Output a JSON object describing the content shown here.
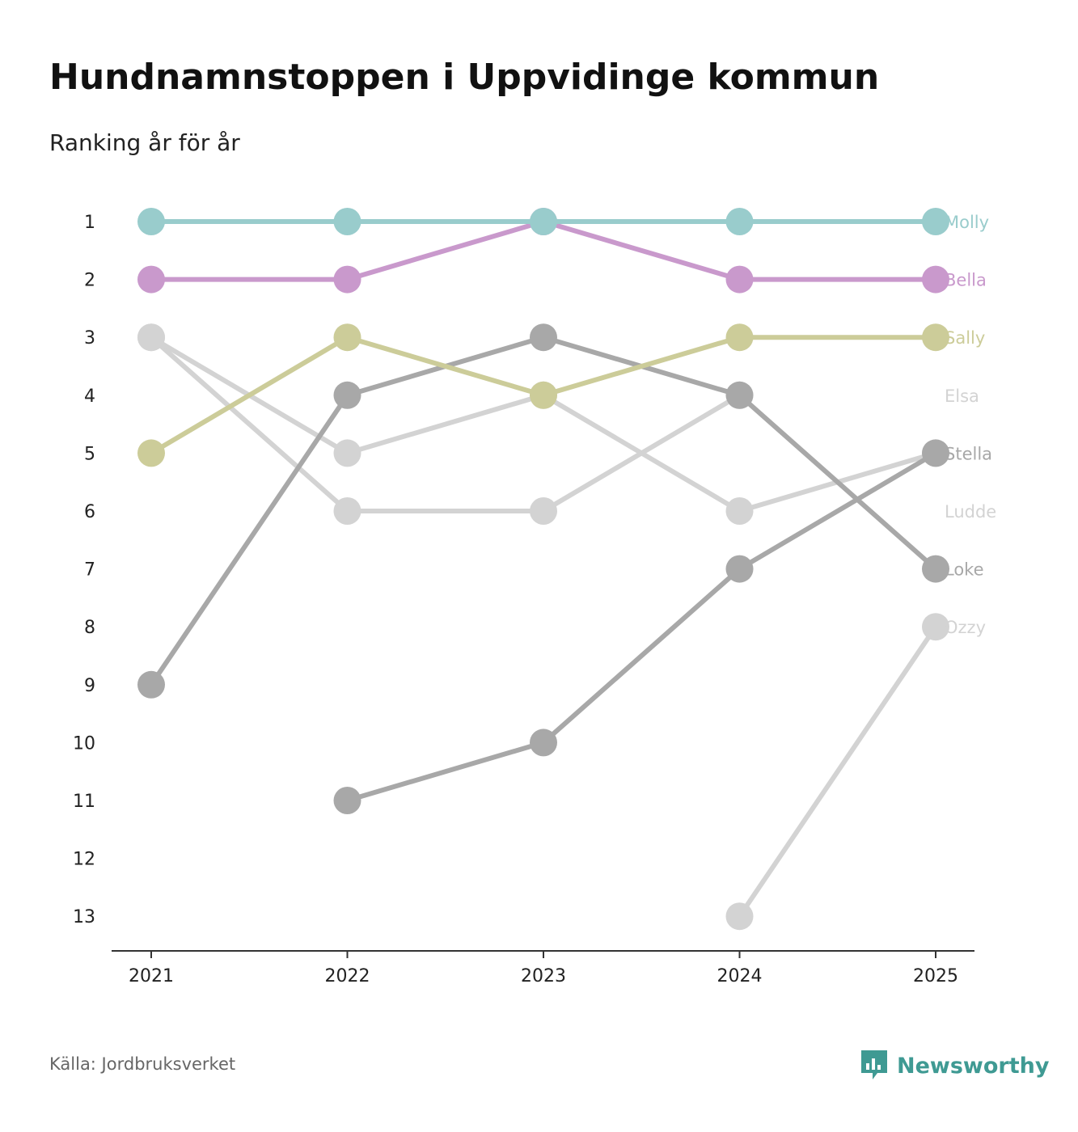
{
  "header": {
    "title": "Hundnamnstoppen i Uppvidinge kommun",
    "subtitle": "Ranking år för år"
  },
  "footer": {
    "source": "Källa: Jordbruksverket",
    "brand": "Newsworthy",
    "brand_color": "#3f9a93"
  },
  "chart_data": {
    "type": "line",
    "title": "Hundnamnstoppen i Uppvidinge kommun",
    "subtitle": "Ranking år för år",
    "xlabel": "",
    "ylabel": "",
    "categories": [
      "2021",
      "2022",
      "2023",
      "2024",
      "2025"
    ],
    "y_ticks": [
      "1",
      "2",
      "3",
      "4",
      "5",
      "6",
      "7",
      "8",
      "9",
      "10",
      "11",
      "12",
      "13"
    ],
    "ylim": [
      1,
      13
    ],
    "y_inverted": true,
    "grid": false,
    "series": [
      {
        "name": "Ozzy",
        "color": "#d3d3d3",
        "values": [
          null,
          null,
          null,
          13,
          8
        ]
      },
      {
        "name": "Ludde",
        "color": "#d3d3d3",
        "values": [
          3,
          6,
          6,
          4,
          null
        ]
      },
      {
        "name": "Elsa",
        "color": "#d3d3d3",
        "values": [
          3,
          5,
          4,
          6,
          5
        ]
      },
      {
        "name": "Stella",
        "color": "#a8a8a8",
        "values": [
          null,
          11,
          10,
          7,
          5
        ]
      },
      {
        "name": "Loke",
        "color": "#a8a8a8",
        "values": [
          9,
          4,
          3,
          4,
          7
        ]
      },
      {
        "name": "Sally",
        "color": "#cccc99",
        "values": [
          5,
          3,
          4,
          3,
          3
        ]
      },
      {
        "name": "Bella",
        "color": "#c999cc",
        "values": [
          2,
          2,
          1,
          2,
          2
        ]
      },
      {
        "name": "Molly",
        "color": "#99cccc",
        "values": [
          1,
          1,
          1,
          1,
          1
        ]
      }
    ],
    "end_labels": [
      {
        "name": "Molly",
        "rank": 1,
        "color": "#99cccc"
      },
      {
        "name": "Bella",
        "rank": 2,
        "color": "#c999cc"
      },
      {
        "name": "Sally",
        "rank": 3,
        "color": "#cccc99"
      },
      {
        "name": "Elsa",
        "rank": 4,
        "color": "#d3d3d3"
      },
      {
        "name": "Stella",
        "rank": 5,
        "color": "#a8a8a8"
      },
      {
        "name": "Ludde",
        "rank": 6,
        "color": "#d3d3d3"
      },
      {
        "name": "Loke",
        "rank": 7,
        "color": "#a8a8a8"
      },
      {
        "name": "Ozzy",
        "rank": 8,
        "color": "#d3d3d3"
      }
    ]
  }
}
